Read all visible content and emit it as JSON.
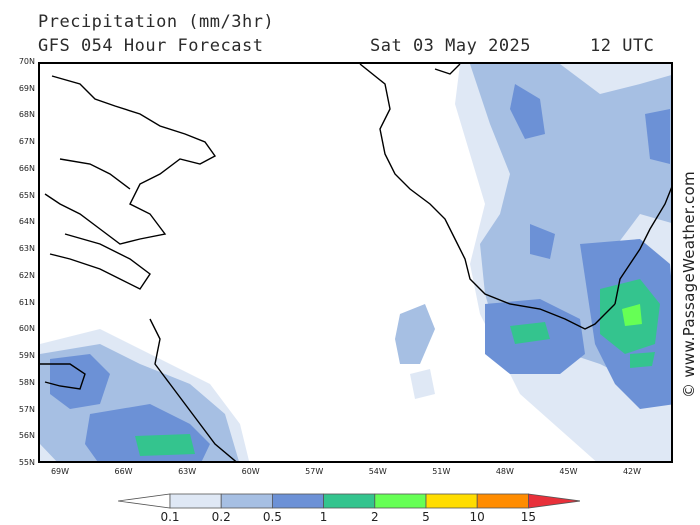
{
  "header": {
    "title": "Precipitation (mm/3hr)",
    "subtitle": "GFS 054 Hour Forecast",
    "date": "Sat 03 May 2025",
    "time": "12 UTC"
  },
  "map": {
    "lat_labels": [
      "70N",
      "69N",
      "68N",
      "67N",
      "66N",
      "65N",
      "64N",
      "63N",
      "62N",
      "61N",
      "60N",
      "59N",
      "58N",
      "57N",
      "56N",
      "55N"
    ],
    "lon_labels": [
      "69W",
      "66W",
      "63W",
      "60W",
      "57W",
      "54W",
      "51W",
      "48W",
      "45W",
      "42W"
    ],
    "land_outline_color": "#000000",
    "frame_color": "#000000"
  },
  "credit": "© www.PassageWeather.com",
  "legend": {
    "labels": [
      "0.1",
      "0.2",
      "0.5",
      "1",
      "2",
      "5",
      "10",
      "15"
    ],
    "colors": [
      "#ffffff",
      "#dfe8f5",
      "#a6bfe3",
      "#6c91d6",
      "#34c48e",
      "#66ff55",
      "#ffdd00",
      "#ff8c00",
      "#e8303a"
    ]
  }
}
